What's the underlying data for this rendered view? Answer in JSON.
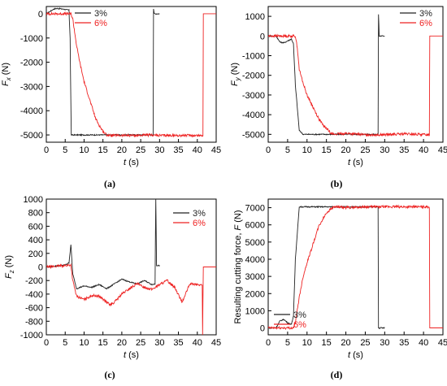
{
  "chart_data": [
    {
      "type": "line",
      "panel_label": "(a)",
      "xlabel_var": "t",
      "xlabel_unit": " (s)",
      "ylabel_var": "F",
      "ylabel_sub": "x",
      "ylabel_unit": " (N)",
      "xlim": [
        0,
        45
      ],
      "ylim": [
        -5300,
        300
      ],
      "xticks": [
        0,
        5,
        10,
        15,
        20,
        25,
        30,
        35,
        40,
        45
      ],
      "yticks": [
        0,
        -1000,
        -2000,
        -3000,
        -4000,
        -5000
      ],
      "legend": "top-right",
      "grid": false,
      "series": [
        {
          "name": "3%",
          "color": "#222222",
          "x": [
            0,
            1,
            2,
            3,
            4,
            5,
            6,
            6.3,
            6.6,
            10,
            20,
            28.3,
            28.4,
            28.6,
            30,
            30.1
          ],
          "y": [
            0,
            100,
            200,
            220,
            200,
            180,
            150,
            -1000,
            -5000,
            -5000,
            -5000,
            -5000,
            200,
            0,
            0,
            null
          ]
        },
        {
          "name": "6%",
          "color": "#ee2222",
          "x": [
            0,
            2,
            5,
            6.5,
            7,
            8,
            9,
            10,
            11,
            12,
            13,
            14,
            15,
            16,
            17,
            20,
            25,
            28,
            30,
            35,
            41.5,
            41.6,
            45
          ],
          "y": [
            0,
            0,
            0,
            0,
            -200,
            -1300,
            -2100,
            -2800,
            -3300,
            -3800,
            -4300,
            -4600,
            -4850,
            -5000,
            -5020,
            -5020,
            -5020,
            -5000,
            -5020,
            -5020,
            -5020,
            0,
            0
          ]
        }
      ]
    },
    {
      "type": "line",
      "panel_label": "(b)",
      "xlabel_var": "t",
      "xlabel_unit": " (s)",
      "ylabel_var": "F",
      "ylabel_sub": "y",
      "ylabel_unit": " (N)",
      "xlim": [
        0,
        45
      ],
      "ylim": [
        -5400,
        1500
      ],
      "xticks": [
        0,
        5,
        10,
        15,
        20,
        25,
        30,
        35,
        40,
        45
      ],
      "yticks": [
        1000,
        0,
        -1000,
        -2000,
        -3000,
        -4000,
        -5000
      ],
      "legend": "top-right",
      "grid": false,
      "series": [
        {
          "name": "3%",
          "color": "#222222",
          "x": [
            0,
            2,
            3,
            4,
            5,
            6,
            6.5,
            7,
            8,
            9,
            10,
            20,
            28.3,
            28.4,
            28.6,
            30
          ],
          "y": [
            0,
            0,
            -300,
            -350,
            -250,
            -150,
            -400,
            -2500,
            -4800,
            -5000,
            -5000,
            -5000,
            -5000,
            1100,
            0,
            0
          ]
        },
        {
          "name": "6%",
          "color": "#ee2222",
          "x": [
            0,
            7,
            7.5,
            8,
            9,
            10,
            11,
            12,
            13,
            14,
            15,
            16,
            17,
            20,
            25,
            30,
            35,
            41.5,
            41.6,
            45
          ],
          "y": [
            0,
            0,
            -600,
            -1700,
            -2400,
            -3000,
            -3400,
            -3800,
            -4200,
            -4500,
            -4700,
            -4900,
            -5000,
            -4950,
            -5020,
            -5020,
            -4980,
            -5020,
            0,
            0
          ]
        }
      ]
    },
    {
      "type": "line",
      "panel_label": "(c)",
      "xlabel_var": "t",
      "xlabel_unit": " (s)",
      "ylabel_var": "F",
      "ylabel_sub": "z",
      "ylabel_unit": " (N)",
      "xlim": [
        0,
        45
      ],
      "ylim": [
        -1000,
        1000
      ],
      "xticks": [
        0,
        5,
        10,
        15,
        20,
        25,
        30,
        35,
        40,
        45
      ],
      "yticks": [
        1000,
        800,
        600,
        400,
        200,
        0,
        -200,
        -400,
        -600,
        -800,
        -1000
      ],
      "legend": "top-right",
      "grid": false,
      "series": [
        {
          "name": "3%",
          "color": "#222222",
          "x": [
            0,
            2,
            5,
            6,
            6.5,
            7,
            8,
            10,
            12,
            14,
            16,
            18,
            20,
            22,
            24,
            26,
            28,
            28.8,
            29,
            29.2,
            30
          ],
          "y": [
            0,
            10,
            30,
            60,
            330,
            -100,
            -320,
            -280,
            -300,
            -260,
            -320,
            -250,
            -180,
            -220,
            -250,
            -200,
            -260,
            -250,
            1000,
            20,
            20
          ]
        },
        {
          "name": "6%",
          "color": "#ee2222",
          "x": [
            0,
            5,
            6.5,
            7,
            8,
            10,
            12,
            14,
            16,
            17,
            18,
            20,
            22,
            24,
            26,
            28,
            30,
            32,
            34,
            36,
            38,
            40,
            41.3,
            41.4,
            41.6,
            45
          ],
          "y": [
            0,
            20,
            30,
            -200,
            -430,
            -480,
            -420,
            -430,
            -520,
            -560,
            -520,
            -400,
            -320,
            -250,
            -300,
            -330,
            -260,
            -200,
            -300,
            -520,
            -250,
            -260,
            -270,
            -1000,
            0,
            0
          ]
        }
      ]
    },
    {
      "type": "line",
      "panel_label": "(d)",
      "xlabel_var": "t",
      "xlabel_unit": " (s)",
      "ylabel_text": "Resulting cutting force, ",
      "ylabel_var": "F",
      "ylabel_unit": " (N)",
      "xlim": [
        0,
        45
      ],
      "ylim": [
        -400,
        7500
      ],
      "xticks": [
        0,
        5,
        10,
        15,
        20,
        25,
        30,
        35,
        40,
        45
      ],
      "yticks": [
        0,
        1000,
        2000,
        3000,
        4000,
        5000,
        6000,
        7000
      ],
      "legend": "bottom-left",
      "grid": false,
      "series": [
        {
          "name": "3%",
          "color": "#222222",
          "x": [
            0,
            2,
            3,
            4,
            5,
            6,
            6.5,
            7,
            8,
            10,
            20,
            28.3,
            28.4,
            30
          ],
          "y": [
            0,
            0,
            400,
            500,
            300,
            200,
            700,
            4000,
            7050,
            7050,
            7050,
            7050,
            0,
            0
          ]
        },
        {
          "name": "6%",
          "color": "#ee2222",
          "x": [
            0,
            6.5,
            7,
            8,
            9,
            10,
            11,
            12,
            13,
            14,
            15,
            16,
            17,
            20,
            25,
            30,
            35,
            41.5,
            41.6,
            45
          ],
          "y": [
            0,
            0,
            300,
            1800,
            3000,
            3800,
            4500,
            5200,
            5900,
            6300,
            6700,
            6900,
            7050,
            7000,
            7050,
            7050,
            7050,
            7050,
            0,
            0
          ]
        }
      ]
    }
  ]
}
